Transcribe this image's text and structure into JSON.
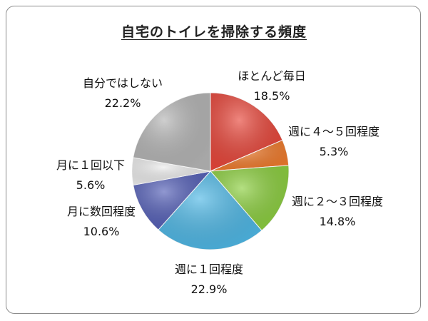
{
  "chart_data": {
    "type": "pie",
    "title": "自宅のトイレを掃除する頻度",
    "slices": [
      {
        "label": "ほとんど毎日",
        "value": 18.5,
        "value_label": "18.5%",
        "color": "#e8463a"
      },
      {
        "label": "週に４～５回程度",
        "value": 5.3,
        "value_label": "5.3%",
        "color": "#f07b2c"
      },
      {
        "label": "週に２～３回程度",
        "value": 14.8,
        "value_label": "14.8%",
        "color": "#8ccf3f"
      },
      {
        "label": "週に１回程度",
        "value": 22.9,
        "value_label": "22.9%",
        "color": "#4fb8e6"
      },
      {
        "label": "月に数回程度",
        "value": 10.6,
        "value_label": "10.6%",
        "color": "#5560b8"
      },
      {
        "label": "月に１回以下",
        "value": 5.6,
        "value_label": "5.6%",
        "color": "#ececec"
      },
      {
        "label": "自分ではしない",
        "value": 22.2,
        "value_label": "22.2%",
        "color": "#b5b5b5"
      }
    ],
    "start_angle": "12 o'clock",
    "direction": "clockwise",
    "legend": "none"
  }
}
